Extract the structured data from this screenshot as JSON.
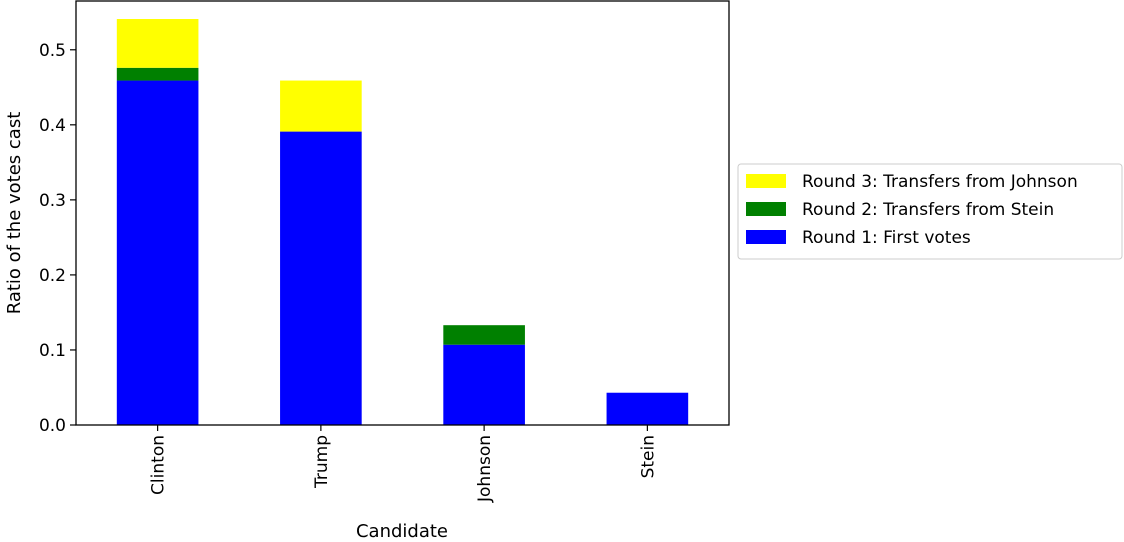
{
  "chart_data": {
    "type": "bar",
    "stacked": true,
    "xlabel": "Candidate",
    "ylabel": "Ratio of the votes cast",
    "categories": [
      "Clinton",
      "Trump",
      "Johnson",
      "Stein"
    ],
    "ylim": [
      0,
      0.565
    ],
    "yticks": [
      "0.0",
      "0.1",
      "0.2",
      "0.3",
      "0.4",
      "0.5"
    ],
    "series": [
      {
        "name": "Round 1: First votes",
        "color": "#0000ff",
        "values": [
          0.459,
          0.391,
          0.107,
          0.043
        ]
      },
      {
        "name": "Round 2: Transfers from Stein",
        "color": "#008000",
        "values": [
          0.017,
          0.0,
          0.026,
          0.0
        ]
      },
      {
        "name": "Round 3: Transfers from Johnson",
        "color": "#ffff00",
        "values": [
          0.065,
          0.068,
          0.0,
          0.0
        ]
      }
    ],
    "legend_order": [
      "Round 3: Transfers from Johnson",
      "Round 2: Transfers from Stein",
      "Round 1: First votes"
    ],
    "legend_position": "center-right, outside plot",
    "grid": false
  }
}
